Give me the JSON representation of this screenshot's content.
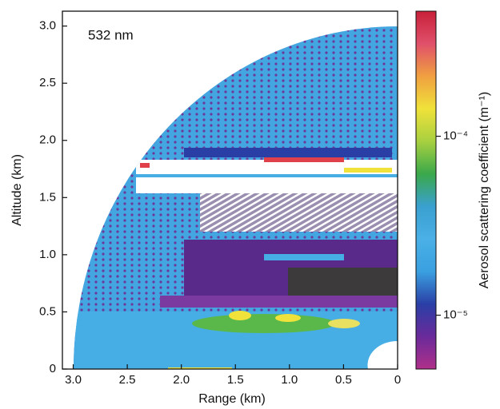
{
  "chart_data": {
    "type": "lidar-scan",
    "annotation": "532 nm",
    "xlabel": "Range (km)",
    "ylabel": "Altitude (km)",
    "xlim": [
      3.1,
      0
    ],
    "ylim": [
      0,
      3.13
    ],
    "xticks": [
      {
        "value": 3,
        "label": "3.0"
      },
      2.5,
      {
        "value": 2,
        "label": "2.0"
      },
      1.5,
      {
        "value": 1,
        "label": "1.0"
      },
      0.5,
      0
    ],
    "yticks": [
      0,
      0.5,
      {
        "value": 1,
        "label": "1.0"
      },
      1.5,
      {
        "value": 2,
        "label": "2.0"
      },
      2.5,
      {
        "value": 3,
        "label": "3.0"
      }
    ],
    "colorbar": {
      "label": "Aerosol scattering coefficient (m⁻¹)",
      "log_scale": true,
      "clim": [
        5e-06,
        0.0005
      ],
      "ticks": [
        {
          "value": 1e-05,
          "label": "10⁻⁵"
        },
        {
          "value": 0.0001,
          "label": "10⁻⁴"
        }
      ],
      "colors": [
        "#b0308a",
        "#6a2a9a",
        "#2a3fa6",
        "#3aa0e0",
        "#4ab0e6",
        "#3aa0d0",
        "#3aa84a",
        "#a8d040",
        "#f0e23a",
        "#f0a040",
        "#e0506a",
        "#c8203a"
      ]
    }
  }
}
